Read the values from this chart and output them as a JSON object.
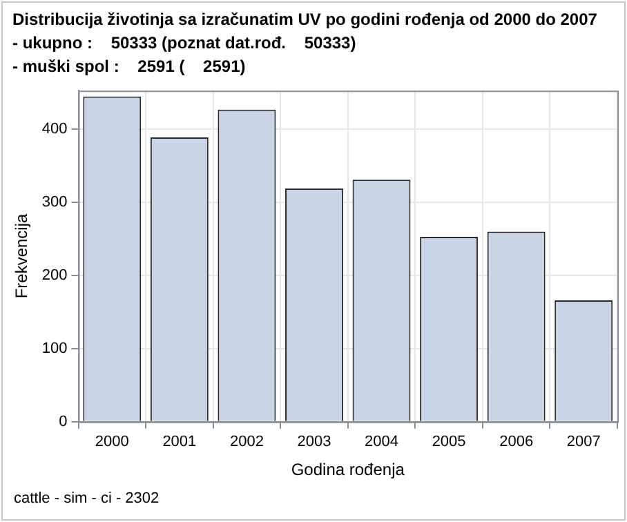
{
  "chart_data": {
    "type": "bar",
    "title": "Distribucija životinja sa izračunatim UV po godini rođenja od 2000 do 2007",
    "subtitle": "- ukupno :    50333 (poznat dat.rođ.    50333)\n- muški spol :    2591 (    2591)",
    "xlabel": "Godina rođenja",
    "ylabel": "Frekvencija",
    "categories": [
      "2000",
      "2001",
      "2002",
      "2003",
      "2004",
      "2005",
      "2006",
      "2007"
    ],
    "values": [
      445,
      389,
      427,
      319,
      331,
      253,
      260,
      166
    ],
    "color": "#c9d4e4",
    "ylim": [
      0,
      453
    ],
    "yticks": [
      0,
      100,
      200,
      300,
      400
    ],
    "grid": true,
    "legend": false,
    "annotations": [
      "cattle - sim - ci - 2302"
    ]
  }
}
